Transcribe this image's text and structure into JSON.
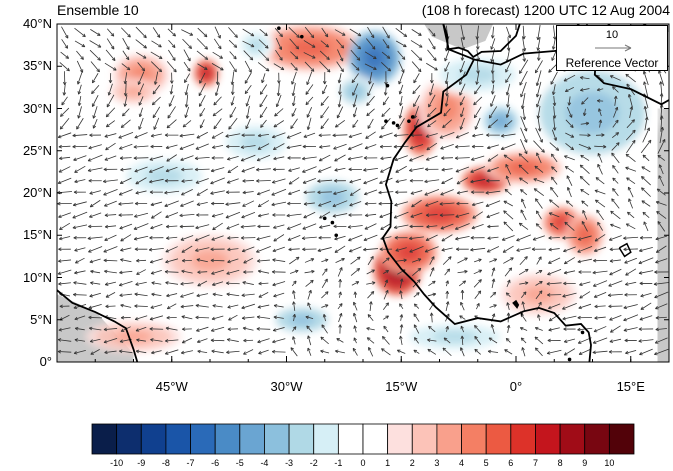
{
  "titles": {
    "left": "Ensemble 10",
    "right": "(108 h forecast) 1200 UTC 12 Aug 2004"
  },
  "map": {
    "lon_range": [
      -60,
      20
    ],
    "lat_range": [
      0,
      40
    ],
    "lat_labels": [
      "40°N",
      "35°N",
      "30°N",
      "25°N",
      "20°N",
      "15°N",
      "10°N",
      "5°N",
      "0°"
    ],
    "lon_labels": [
      "45°W",
      "30°W",
      "15°W",
      "0°",
      "15°E"
    ],
    "field_blobs": [
      {
        "lon": -27.0,
        "lat": 37.2,
        "rx": 5.5,
        "ry": 2.2,
        "value": 4
      },
      {
        "lon": -40.5,
        "lat": 34.2,
        "rx": 1.3,
        "ry": 1.3,
        "value": 6
      },
      {
        "lon": -49.0,
        "lat": 34.0,
        "rx": 3.0,
        "ry": 2.0,
        "value": 3
      },
      {
        "lon": -50.0,
        "lat": 32.0,
        "rx": 2.5,
        "ry": 1.2,
        "value": 2
      },
      {
        "lon": -18.5,
        "lat": 36.0,
        "rx": 2.8,
        "ry": 2.6,
        "value": -6
      },
      {
        "lon": -21.0,
        "lat": 32.0,
        "rx": 2.0,
        "ry": 1.5,
        "value": -3
      },
      {
        "lon": 9.0,
        "lat": 30.5,
        "rx": 4.5,
        "ry": 3.5,
        "value": -6
      },
      {
        "lon": 10.0,
        "lat": 29.5,
        "rx": 7.0,
        "ry": 5.0,
        "value": -3
      },
      {
        "lon": -12.5,
        "lat": 27.5,
        "rx": 1.8,
        "ry": 2.5,
        "value": 6
      },
      {
        "lon": -9.0,
        "lat": 30.0,
        "rx": 3.0,
        "ry": 3.0,
        "value": 3
      },
      {
        "lon": -2.0,
        "lat": 28.5,
        "rx": 2.0,
        "ry": 1.5,
        "value": -4
      },
      {
        "lon": -4.0,
        "lat": 21.5,
        "rx": 2.5,
        "ry": 1.3,
        "value": 6
      },
      {
        "lon": -10.0,
        "lat": 17.5,
        "rx": 4.0,
        "ry": 1.8,
        "value": 5
      },
      {
        "lon": 1.0,
        "lat": 23.0,
        "rx": 4.0,
        "ry": 1.5,
        "value": 4
      },
      {
        "lon": -15.5,
        "lat": 11.0,
        "rx": 2.5,
        "ry": 2.5,
        "value": 7
      },
      {
        "lon": -14.0,
        "lat": 13.0,
        "rx": 3.0,
        "ry": 2.0,
        "value": 5
      },
      {
        "lon": 6.0,
        "lat": 16.5,
        "rx": 2.0,
        "ry": 1.5,
        "value": 5
      },
      {
        "lon": 9.0,
        "lat": 15.0,
        "rx": 2.0,
        "ry": 2.0,
        "value": 4
      },
      {
        "lon": -46.0,
        "lat": 22.0,
        "rx": 5.0,
        "ry": 2.0,
        "value": -2
      },
      {
        "lon": -34.0,
        "lat": 26.0,
        "rx": 4.0,
        "ry": 2.0,
        "value": -2
      },
      {
        "lon": -24.0,
        "lat": 19.5,
        "rx": 3.5,
        "ry": 2.0,
        "value": -3
      },
      {
        "lon": -40.0,
        "lat": 12.0,
        "rx": 5.0,
        "ry": 2.5,
        "value": 2
      },
      {
        "lon": -28.0,
        "lat": 5.0,
        "rx": 3.5,
        "ry": 1.5,
        "value": -3
      },
      {
        "lon": -8.0,
        "lat": 3.0,
        "rx": 6.0,
        "ry": 1.5,
        "value": -2
      },
      {
        "lon": 3.0,
        "lat": 8.0,
        "rx": 4.0,
        "ry": 2.0,
        "value": 2
      },
      {
        "lon": -50.0,
        "lat": 3.0,
        "rx": 5.0,
        "ry": 1.5,
        "value": 2
      },
      {
        "lon": -5.0,
        "lat": 34.0,
        "rx": 5.0,
        "ry": 2.0,
        "value": -2
      },
      {
        "lon": -34.0,
        "lat": 37.5,
        "rx": 2.0,
        "ry": 1.5,
        "value": -2
      }
    ],
    "reference_vector": {
      "number": "10",
      "label": "Reference Vector"
    }
  },
  "colorbar": {
    "labels": [
      "-10",
      "-9",
      "-8",
      "-7",
      "-6",
      "-5",
      "-4",
      "-3",
      "-2",
      "-1",
      "0",
      "1",
      "2",
      "3",
      "4",
      "5",
      "6",
      "7",
      "8",
      "9",
      "10"
    ],
    "colors": [
      "#0a1e4a",
      "#0d2e6e",
      "#10408f",
      "#1a55a8",
      "#2a6ab8",
      "#4a8bc6",
      "#6aa5d2",
      "#8cc0dd",
      "#b0d9e6",
      "#d6eff6",
      "#ffffff",
      "#ffffff",
      "#fde0de",
      "#fcc3b8",
      "#f9a08c",
      "#f47f64",
      "#ec5a42",
      "#dd3229",
      "#c4151d",
      "#a00c17",
      "#780611",
      "#520209"
    ]
  },
  "colors": {
    "land_gray": "#c8c8c8",
    "frame": "#000000"
  }
}
